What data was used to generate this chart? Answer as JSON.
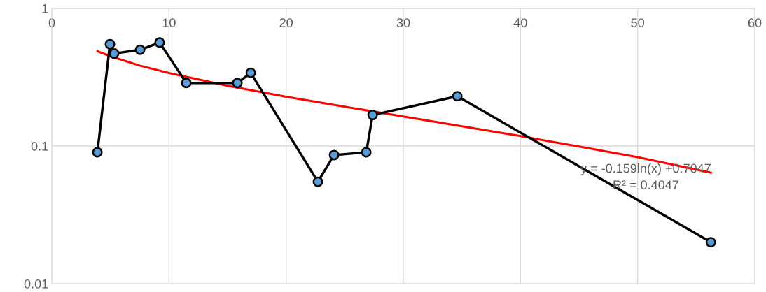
{
  "chart_data": {
    "type": "line",
    "log": "y",
    "grid": true,
    "marker": "none",
    "line_style": "solid",
    "xlim": [
      0,
      60
    ],
    "xticks": [
      0,
      10,
      20,
      30,
      40,
      50,
      60
    ],
    "ylim": [
      0.01,
      1
    ],
    "yticks": [
      0.01,
      0.1,
      1
    ],
    "series": [
      {
        "marker": "circle",
        "color": "#000000",
        "x": [
          3.89,
          4.96,
          5.32,
          7.53,
          9.2,
          11.48,
          15.84,
          16.98,
          22.71,
          24.09,
          26.84,
          27.38,
          34.61,
          56.25
        ],
        "values": [
          0.09,
          0.55,
          0.47,
          0.5,
          0.565,
          0.287,
          0.287,
          0.34,
          0.055,
          0.086,
          0.09,
          0.168,
          0.23,
          0.02
        ]
      },
      {
        "color": "#ff0000",
        "x": [
          3.9,
          5,
          7.5,
          10,
          15,
          20,
          25,
          30,
          35,
          40,
          45,
          50,
          56.25
        ],
        "values": [
          0.488,
          0.449,
          0.384,
          0.339,
          0.274,
          0.228,
          0.193,
          0.164,
          0.139,
          0.118,
          0.099,
          0.083,
          0.064
        ]
      }
    ],
    "annotations": [
      "y = -0.159ln(x) +0.7047",
      "R² = 0.4047"
    ]
  }
}
